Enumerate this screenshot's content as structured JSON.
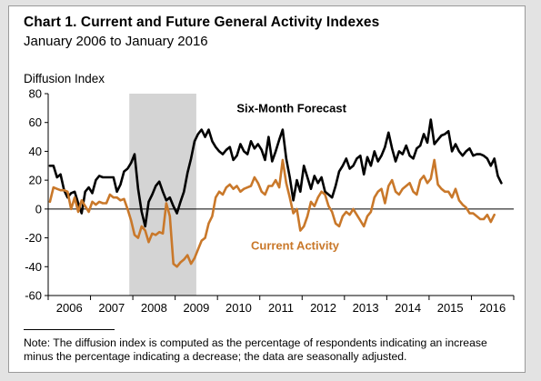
{
  "title": "Chart 1. Current and Future General Activity Indexes",
  "subtitle": "January 2006 to January 2016",
  "note": "Note: The diffusion index is computed as the percentage of respondents indicating an increase minus the percentage indicating a decrease; the data are seasonally adjusted.",
  "colors": {
    "forecast": "#000000",
    "current": "#c9782a",
    "recession": "#d4d4d4",
    "background": "#e3e3e3",
    "panel": "#ffffff"
  },
  "chart_data": {
    "type": "line",
    "ylabel": "Diffusion Index",
    "xlabel": "",
    "ylim": [
      -60,
      80
    ],
    "yticks": [
      -60,
      -40,
      -20,
      0,
      20,
      40,
      60,
      80
    ],
    "xticklabels": [
      "2006",
      "2007",
      "2008",
      "2009",
      "2010",
      "2011",
      "2012",
      "2013",
      "2014",
      "2015",
      "2016"
    ],
    "xrange": [
      "2006-01",
      "2016-12"
    ],
    "grid": false,
    "shaded_periods": [
      {
        "start": "2007-12",
        "end": "2009-06"
      }
    ],
    "annotations": [
      {
        "text": "Six-Month Forecast",
        "series": "Six-Month Forecast"
      },
      {
        "text": "Current Activity",
        "series": "Current Activity"
      }
    ],
    "series": [
      {
        "name": "Six-Month Forecast",
        "start": "2006-01",
        "values": [
          30,
          30,
          22,
          24,
          13,
          8,
          11,
          12,
          4,
          -3,
          12,
          15,
          11,
          20,
          23,
          22,
          22,
          22,
          22,
          12,
          17,
          26,
          28,
          32,
          38,
          14,
          -2,
          -12,
          5,
          10,
          16,
          19,
          12,
          6,
          8,
          2,
          -3,
          5,
          12,
          25,
          35,
          47,
          52,
          55,
          50,
          55,
          47,
          43,
          40,
          38,
          41,
          43,
          34,
          37,
          45,
          40,
          38,
          47,
          42,
          45,
          41,
          34,
          50,
          33,
          40,
          48,
          55,
          35,
          22,
          6,
          20,
          12,
          30,
          22,
          14,
          23,
          18,
          22,
          12,
          10,
          8,
          16,
          26,
          30,
          35,
          28,
          30,
          35,
          37,
          24,
          36,
          30,
          40,
          33,
          37,
          43,
          53,
          42,
          33,
          40,
          38,
          44,
          37,
          35,
          42,
          44,
          52,
          46,
          62,
          45,
          48,
          51,
          52,
          54,
          40,
          45,
          40,
          37,
          40,
          42,
          37,
          38,
          38,
          37,
          35,
          30,
          35,
          23,
          18
        ]
      },
      {
        "name": "Current Activity",
        "start": "2006-01",
        "values": [
          5,
          15,
          14,
          13,
          13,
          12,
          0,
          8,
          -2,
          6,
          2,
          -2,
          5,
          3,
          5,
          4,
          4,
          10,
          8,
          8,
          6,
          7,
          0,
          -8,
          -18,
          -20,
          -12,
          -15,
          -23,
          -17,
          -18,
          -16,
          -17,
          4,
          -5,
          -38,
          -40,
          -37,
          -35,
          -32,
          -38,
          -34,
          -28,
          -22,
          -20,
          -10,
          -5,
          8,
          12,
          10,
          15,
          17,
          14,
          16,
          12,
          14,
          15,
          16,
          22,
          18,
          12,
          10,
          16,
          16,
          20,
          15,
          34,
          18,
          8,
          -3,
          0,
          -15,
          -12,
          -5,
          5,
          2,
          8,
          12,
          10,
          2,
          -2,
          -10,
          -12,
          -5,
          -2,
          -4,
          0,
          -4,
          -8,
          -12,
          -5,
          -2,
          8,
          12,
          14,
          4,
          16,
          20,
          12,
          10,
          14,
          16,
          18,
          12,
          10,
          20,
          23,
          18,
          21,
          34,
          17,
          14,
          12,
          12,
          8,
          14,
          6,
          3,
          1,
          -3,
          -3,
          -5,
          -7,
          -7,
          -4,
          -9,
          -4
        ]
      }
    ]
  }
}
